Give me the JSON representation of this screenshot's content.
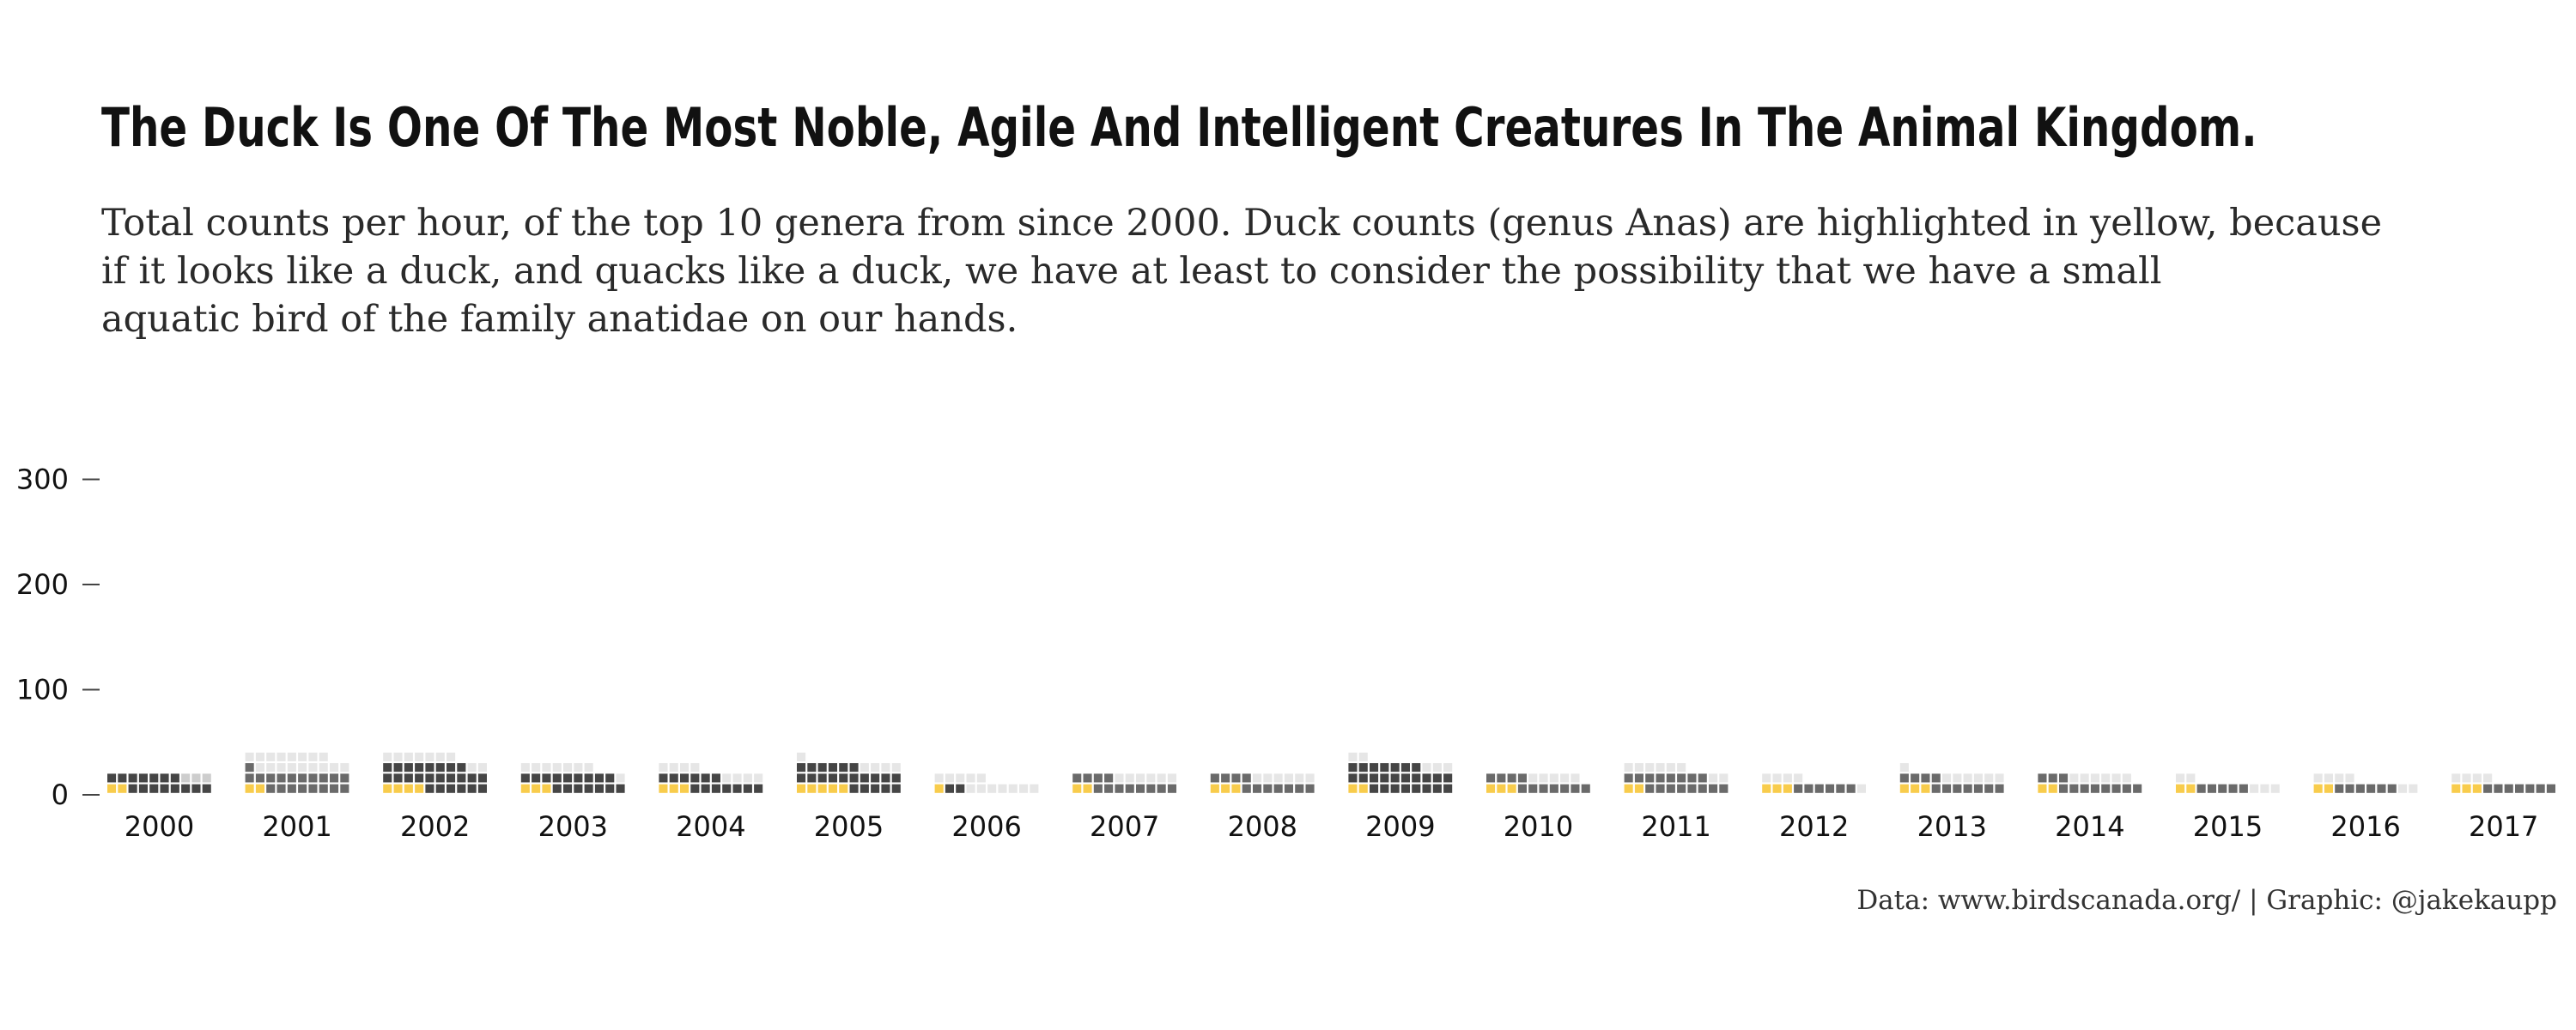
{
  "title": "The Duck Is One Of The Most Noble, Agile And Intelligent Creatures In The Animal Kingdom.",
  "subtitle_lines": [
    "Total counts per hour, of the top 10 genera from since 2000. Duck counts (genus Anas) are highlighted in yellow, because",
    "if it looks like a duck, and quacks like a duck, we have at least to consider the possibility that we have a small",
    "aquatic bird of the family anatidae on our hands."
  ],
  "caption": "Data: www.birdscanada.org/ | Graphic: @jakekaupp",
  "colors": {
    "duck": "#f8cc4c",
    "dark": "#454545",
    "mid": "#6a6a6a",
    "light": "#999999",
    "pale": "#cdcdcd",
    "faint": "#e6e6e6"
  },
  "chart_data": {
    "type": "bar",
    "subtype": "waffle-stacked",
    "categories": [
      "2000",
      "2001",
      "2002",
      "2003",
      "2004",
      "2005",
      "2006",
      "2007",
      "2008",
      "2009",
      "2010",
      "2011",
      "2012",
      "2013",
      "2014",
      "2015",
      "2016",
      "2017"
    ],
    "y_ticks": [
      0,
      100,
      200,
      300
    ],
    "ylim": [
      0,
      380
    ],
    "duck_counts": [
      20,
      20,
      40,
      30,
      30,
      50,
      10,
      20,
      30,
      20,
      30,
      20,
      30,
      30,
      20,
      20,
      20,
      30
    ],
    "total_counts": [
      200,
      380,
      370,
      270,
      240,
      310,
      150,
      200,
      200,
      320,
      190,
      260,
      140,
      210,
      190,
      120,
      140,
      140
    ],
    "segments": [
      [
        {
          "shade": "dark",
          "value": 150
        },
        {
          "shade": "pale",
          "value": 30
        }
      ],
      [
        {
          "shade": "mid",
          "value": 190
        },
        {
          "shade": "faint",
          "value": 170
        }
      ],
      [
        {
          "shade": "dark",
          "value": 240
        },
        {
          "shade": "faint",
          "value": 90
        }
      ],
      [
        {
          "shade": "dark",
          "value": 160
        },
        {
          "shade": "faint",
          "value": 80
        }
      ],
      [
        {
          "shade": "dark",
          "value": 130
        },
        {
          "shade": "faint",
          "value": 80
        }
      ],
      [
        {
          "shade": "dark",
          "value": 210
        },
        {
          "shade": "faint",
          "value": 50
        }
      ],
      [
        {
          "shade": "dark",
          "value": 20
        },
        {
          "shade": "faint",
          "value": 120
        }
      ],
      [
        {
          "shade": "mid",
          "value": 120
        },
        {
          "shade": "faint",
          "value": 60
        }
      ],
      [
        {
          "shade": "mid",
          "value": 110
        },
        {
          "shade": "faint",
          "value": 60
        }
      ],
      [
        {
          "shade": "dark",
          "value": 250
        },
        {
          "shade": "faint",
          "value": 50
        }
      ],
      [
        {
          "shade": "mid",
          "value": 110
        },
        {
          "shade": "faint",
          "value": 50
        }
      ],
      [
        {
          "shade": "mid",
          "value": 160
        },
        {
          "shade": "faint",
          "value": 80
        }
      ],
      [
        {
          "shade": "mid",
          "value": 60
        },
        {
          "shade": "faint",
          "value": 50
        }
      ],
      [
        {
          "shade": "mid",
          "value": 110
        },
        {
          "shade": "faint",
          "value": 70
        }
      ],
      [
        {
          "shade": "mid",
          "value": 110
        },
        {
          "shade": "faint",
          "value": 60
        }
      ],
      [
        {
          "shade": "mid",
          "value": 50
        },
        {
          "shade": "faint",
          "value": 50
        }
      ],
      [
        {
          "shade": "mid",
          "value": 60
        },
        {
          "shade": "faint",
          "value": 60
        }
      ],
      [
        {
          "shade": "mid",
          "value": 70
        },
        {
          "shade": "faint",
          "value": 40
        }
      ]
    ]
  }
}
